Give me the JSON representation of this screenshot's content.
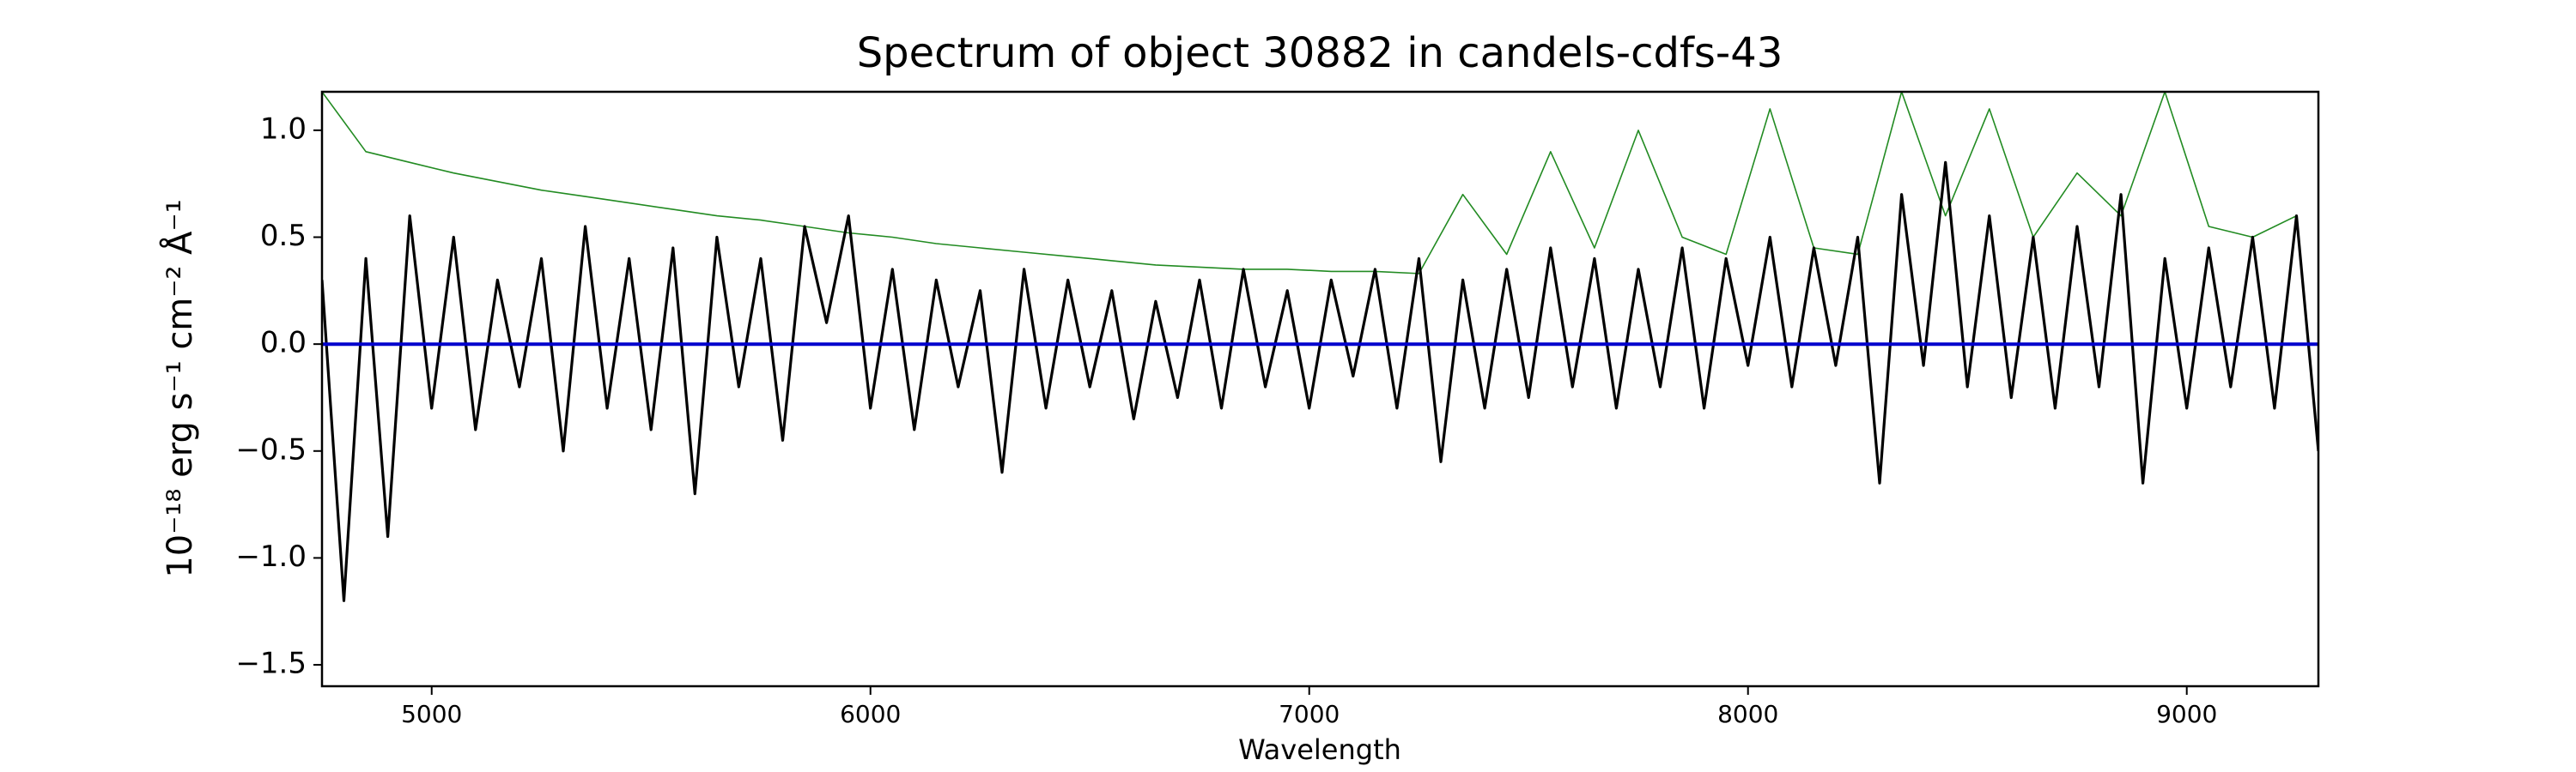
{
  "chart_data": {
    "type": "line",
    "title": "Spectrum of object 30882 in candels-cdfs-43",
    "xlabel": "Wavelength",
    "ylabel": "10⁻¹⁸ erg s⁻¹ cm⁻² Å⁻¹",
    "xlim": [
      4750,
      9300
    ],
    "ylim": [
      -1.6,
      1.18
    ],
    "xticks": [
      5000,
      6000,
      7000,
      8000,
      9000
    ],
    "yticks": [
      {
        "value": -1.5,
        "label": "−1.5"
      },
      {
        "value": -1.0,
        "label": "−1.0"
      },
      {
        "value": -0.5,
        "label": "−0.5"
      },
      {
        "value": 0,
        "label": "0.0"
      },
      {
        "value": 0.5,
        "label": "0.5"
      },
      {
        "value": 1.0,
        "label": "1.0"
      }
    ],
    "series": [
      {
        "color": "#228b22",
        "width": 1.6,
        "x": [
          4750,
          4850,
          4950,
          5050,
          5150,
          5250,
          5350,
          5450,
          5550,
          5650,
          5750,
          5850,
          5950,
          6050,
          6150,
          6250,
          6350,
          6450,
          6550,
          6650,
          6750,
          6850,
          6950,
          7050,
          7150,
          7250,
          7350,
          7450,
          7550,
          7650,
          7750,
          7850,
          7950,
          8050,
          8150,
          8250,
          8350,
          8450,
          8550,
          8650,
          8750,
          8850,
          8950,
          9050,
          9150,
          9250
        ],
        "values": [
          1.18,
          0.9,
          0.85,
          0.8,
          0.76,
          0.72,
          0.69,
          0.66,
          0.63,
          0.6,
          0.58,
          0.55,
          0.52,
          0.5,
          0.47,
          0.45,
          0.43,
          0.41,
          0.39,
          0.37,
          0.36,
          0.35,
          0.35,
          0.34,
          0.34,
          0.33,
          0.7,
          0.42,
          0.9,
          0.45,
          1.0,
          0.5,
          0.42,
          1.1,
          0.45,
          0.42,
          1.18,
          0.6,
          1.1,
          0.5,
          0.8,
          0.6,
          1.18,
          0.55,
          0.5,
          0.6
        ]
      },
      {
        "color": "#000000",
        "width": 3.2,
        "x": [
          4750,
          4800,
          4850,
          4900,
          4950,
          5000,
          5050,
          5100,
          5150,
          5200,
          5250,
          5300,
          5350,
          5400,
          5450,
          5500,
          5550,
          5600,
          5650,
          5700,
          5750,
          5800,
          5850,
          5900,
          5950,
          6000,
          6050,
          6100,
          6150,
          6200,
          6250,
          6300,
          6350,
          6400,
          6450,
          6500,
          6550,
          6600,
          6650,
          6700,
          6750,
          6800,
          6850,
          6900,
          6950,
          7000,
          7050,
          7100,
          7150,
          7200,
          7250,
          7300,
          7350,
          7400,
          7450,
          7500,
          7550,
          7600,
          7650,
          7700,
          7750,
          7800,
          7850,
          7900,
          7950,
          8000,
          8050,
          8100,
          8150,
          8200,
          8250,
          8300,
          8350,
          8400,
          8450,
          8500,
          8550,
          8600,
          8650,
          8700,
          8750,
          8800,
          8850,
          8900,
          8950,
          9000,
          9050,
          9100,
          9150,
          9200,
          9250,
          9300
        ],
        "values": [
          0.3,
          -1.2,
          0.4,
          -0.9,
          0.6,
          -0.3,
          0.5,
          -0.4,
          0.3,
          -0.2,
          0.4,
          -0.5,
          0.55,
          -0.3,
          0.4,
          -0.4,
          0.45,
          -0.7,
          0.5,
          -0.2,
          0.4,
          -0.45,
          0.55,
          0.1,
          0.6,
          -0.3,
          0.35,
          -0.4,
          0.3,
          -0.2,
          0.25,
          -0.6,
          0.35,
          -0.3,
          0.3,
          -0.2,
          0.25,
          -0.35,
          0.2,
          -0.25,
          0.3,
          -0.3,
          0.35,
          -0.2,
          0.25,
          -0.3,
          0.3,
          -0.15,
          0.35,
          -0.3,
          0.4,
          -0.55,
          0.3,
          -0.3,
          0.35,
          -0.25,
          0.45,
          -0.2,
          0.4,
          -0.3,
          0.35,
          -0.2,
          0.45,
          -0.3,
          0.4,
          -0.1,
          0.5,
          -0.2,
          0.45,
          -0.1,
          0.5,
          -0.65,
          0.7,
          -0.1,
          0.85,
          -0.2,
          0.6,
          -0.25,
          0.5,
          -0.3,
          0.55,
          -0.2,
          0.7,
          -0.65,
          0.4,
          -0.3,
          0.45,
          -0.2,
          0.5,
          -0.3,
          0.6,
          -0.5
        ]
      },
      {
        "color": "#0000cd",
        "width": 4,
        "x": [
          4750,
          9300
        ],
        "values": [
          0,
          0
        ]
      }
    ]
  }
}
